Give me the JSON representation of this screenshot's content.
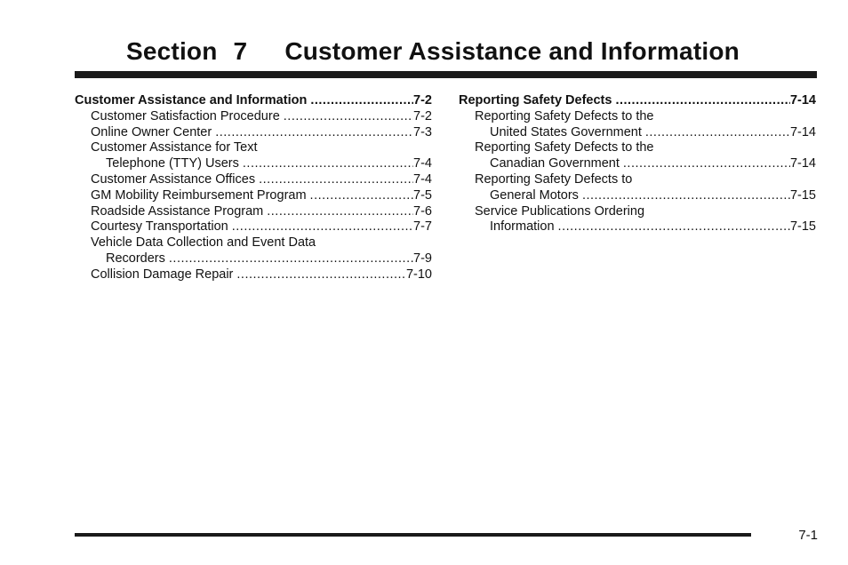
{
  "section": {
    "word": "Section",
    "number": "7",
    "title": "Customer Assistance and Information"
  },
  "page_number": "7-1",
  "left_column": {
    "heading": {
      "label": "Customer Assistance and Information",
      "page": "7-2"
    },
    "items": [
      {
        "label": "Customer Satisfaction Procedure",
        "page": "7-2"
      },
      {
        "label": "Online Owner Center",
        "page": "7-3"
      },
      {
        "line1": "Customer Assistance for Text",
        "label": "Telephone (TTY) Users",
        "page": "7-4"
      },
      {
        "label": "Customer Assistance Offices",
        "page": "7-4"
      },
      {
        "label": "GM Mobility Reimbursement Program",
        "page": "7-5"
      },
      {
        "label": "Roadside Assistance Program",
        "page": "7-6"
      },
      {
        "label": "Courtesy Transportation",
        "page": "7-7"
      },
      {
        "line1": "Vehicle Data Collection and Event Data",
        "label": "Recorders",
        "page": "7-9"
      },
      {
        "label": "Collision Damage Repair",
        "page": "7-10"
      }
    ]
  },
  "right_column": {
    "heading": {
      "label": "Reporting Safety Defects",
      "page": "7-14"
    },
    "items": [
      {
        "line1": "Reporting Safety Defects to the",
        "label": "United States Government",
        "page": "7-14"
      },
      {
        "line1": "Reporting Safety Defects to the",
        "label": "Canadian Government",
        "page": "7-14"
      },
      {
        "line1": "Reporting Safety Defects to",
        "label": "General Motors",
        "page": "7-15"
      },
      {
        "line1": "Service Publications Ordering",
        "label": "Information",
        "page": "7-15"
      }
    ]
  }
}
